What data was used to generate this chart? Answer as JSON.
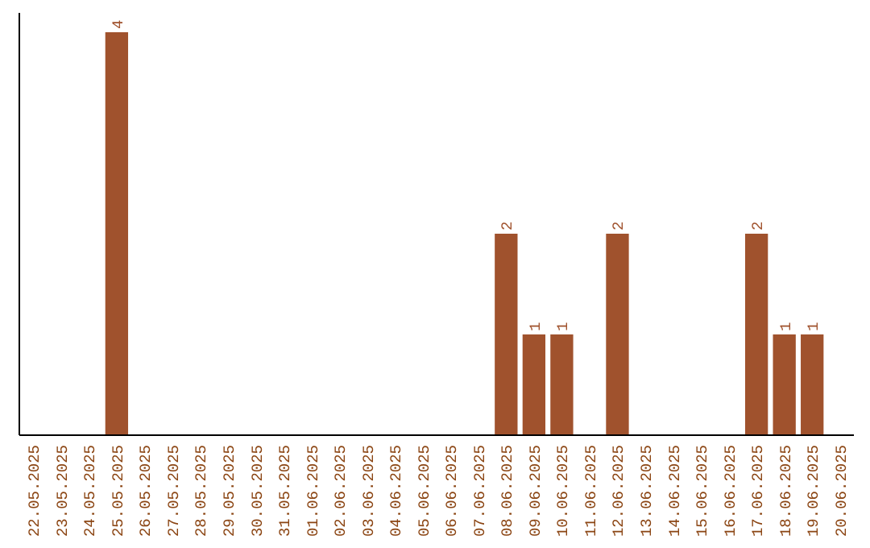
{
  "chart_data": {
    "type": "bar",
    "categories": [
      "22.05.2025",
      "23.05.2025",
      "24.05.2025",
      "25.05.2025",
      "26.05.2025",
      "27.05.2025",
      "28.05.2025",
      "29.05.2025",
      "30.05.2025",
      "31.05.2025",
      "01.06.2025",
      "02.06.2025",
      "03.06.2025",
      "04.06.2025",
      "05.06.2025",
      "06.06.2025",
      "07.06.2025",
      "08.06.2025",
      "09.06.2025",
      "10.06.2025",
      "11.06.2025",
      "12.06.2025",
      "13.06.2025",
      "14.06.2025",
      "15.06.2025",
      "16.06.2025",
      "17.06.2025",
      "18.06.2025",
      "19.06.2025",
      "20.06.2025"
    ],
    "values": [
      0,
      0,
      0,
      4,
      0,
      0,
      0,
      0,
      0,
      0,
      0,
      0,
      0,
      0,
      0,
      0,
      0,
      2,
      1,
      1,
      0,
      2,
      0,
      0,
      0,
      0,
      2,
      1,
      1,
      0
    ],
    "value_labels": [
      null,
      null,
      null,
      "4",
      null,
      null,
      null,
      null,
      null,
      null,
      null,
      null,
      null,
      null,
      null,
      null,
      null,
      "2",
      "1",
      "1",
      null,
      "2",
      null,
      null,
      null,
      null,
      "2",
      "1",
      "1",
      null
    ],
    "color": "#a0522d",
    "ylim": [
      0,
      4
    ],
    "tick_labels": "x"
  }
}
